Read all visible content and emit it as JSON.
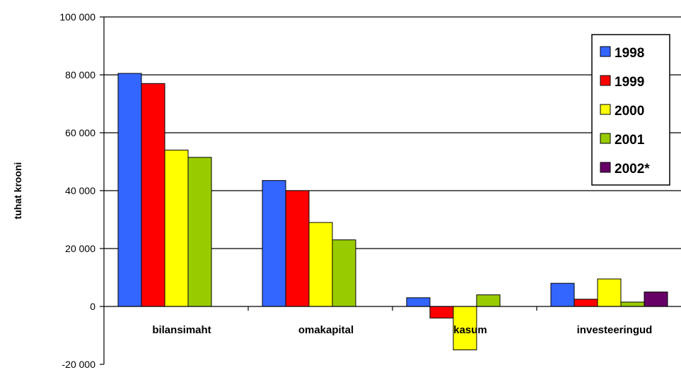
{
  "chart_data": {
    "type": "bar",
    "title": "",
    "xlabel": "",
    "ylabel": "tuhat krooni",
    "categories": [
      "bilansimaht",
      "omakapital",
      "kasum",
      "investeeringud"
    ],
    "ylim": [
      -20000,
      100000
    ],
    "yticks": [
      -20000,
      0,
      20000,
      40000,
      60000,
      80000,
      100000
    ],
    "ytick_labels": [
      "-20 000",
      "0",
      "20 000",
      "40 000",
      "60 000",
      "80 000",
      "100 000"
    ],
    "grid": true,
    "legend_position": "top-right",
    "series": [
      {
        "name": "1998",
        "color": "#3366ff",
        "values": [
          80500,
          43500,
          3000,
          8000
        ]
      },
      {
        "name": "1999",
        "color": "#ff0000",
        "values": [
          77000,
          40000,
          -4000,
          2500
        ]
      },
      {
        "name": "2000",
        "color": "#ffff00",
        "values": [
          54000,
          29000,
          -15000,
          9500
        ]
      },
      {
        "name": "2001",
        "color": "#99cc00",
        "values": [
          51500,
          23000,
          4000,
          1500
        ]
      },
      {
        "name": "2002*",
        "color": "#660066",
        "values": [
          null,
          null,
          null,
          5000
        ]
      }
    ]
  }
}
